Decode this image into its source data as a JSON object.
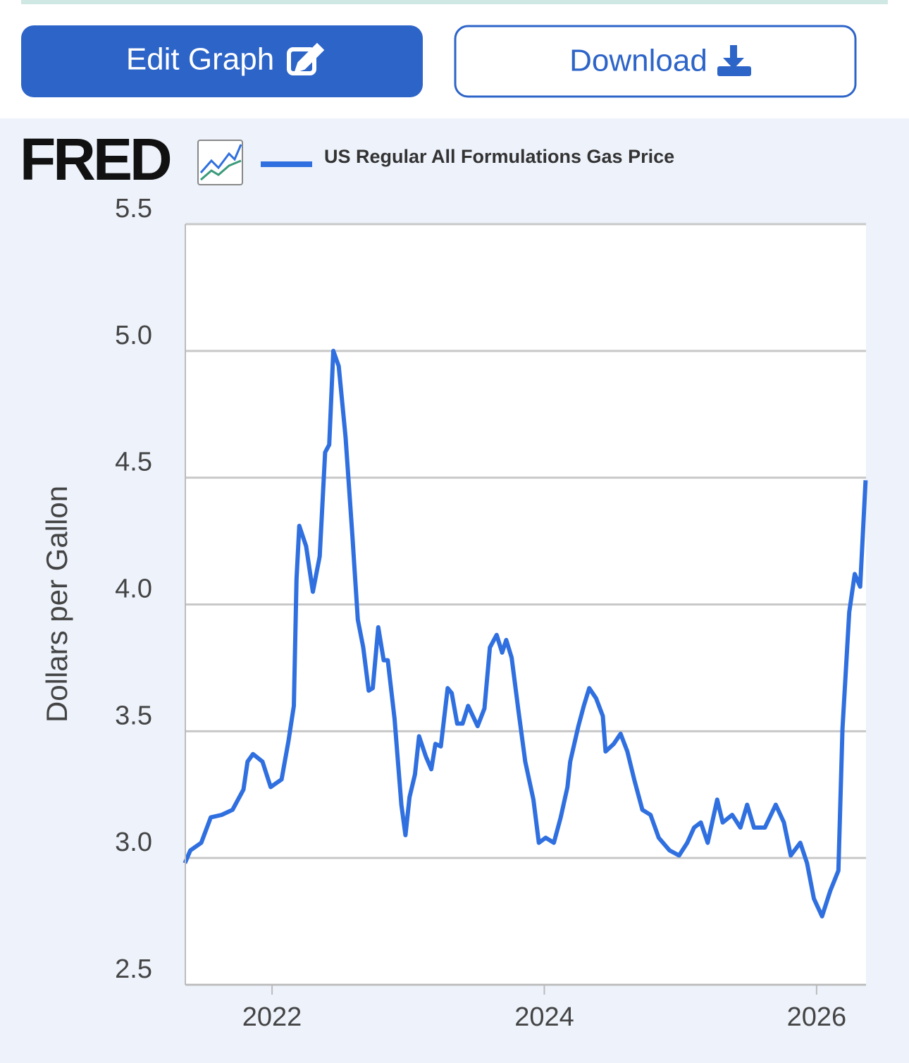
{
  "buttons": {
    "edit": "Edit Graph",
    "download": "Download"
  },
  "logo": "FRED",
  "chart_data": {
    "type": "line",
    "ylabel": "Dollars per Gallon",
    "x": [
      2021.36,
      2021.4,
      2021.48,
      2021.55,
      2021.63,
      2021.71,
      2021.79,
      2021.82,
      2021.86,
      2021.93,
      2021.99,
      2022.07,
      2022.12,
      2022.16,
      2022.18,
      2022.2,
      2022.25,
      2022.3,
      2022.35,
      2022.39,
      2022.42,
      2022.45,
      2022.49,
      2022.54,
      2022.59,
      2022.63,
      2022.67,
      2022.71,
      2022.74,
      2022.78,
      2022.82,
      2022.85,
      2022.9,
      2022.95,
      2022.98,
      2023.01,
      2023.05,
      2023.08,
      2023.13,
      2023.17,
      2023.2,
      2023.24,
      2023.29,
      2023.32,
      2023.36,
      2023.4,
      2023.44,
      2023.51,
      2023.56,
      2023.6,
      2023.65,
      2023.69,
      2023.72,
      2023.76,
      2023.81,
      2023.86,
      2023.92,
      2023.96,
      2024.01,
      2024.07,
      2024.12,
      2024.17,
      2024.19,
      2024.25,
      2024.29,
      2024.33,
      2024.38,
      2024.43,
      2024.45,
      2024.51,
      2024.56,
      2024.61,
      2024.66,
      2024.72,
      2024.78,
      2024.84,
      2024.92,
      2024.99,
      2025.05,
      2025.1,
      2025.15,
      2025.2,
      2025.27,
      2025.31,
      2025.38,
      2025.44,
      2025.49,
      2025.54,
      2025.62,
      2025.7,
      2025.76,
      2025.81,
      2025.88,
      2025.93,
      2025.98,
      2026.04,
      2026.1,
      2026.16,
      2026.19,
      2026.24,
      2026.28,
      2026.32,
      2026.36
    ],
    "series": [
      {
        "name": "US Regular All Formulations Gas Price",
        "color": "#2f6fdf",
        "values": [
          2.98,
          3.03,
          3.06,
          3.16,
          3.17,
          3.19,
          3.27,
          3.38,
          3.41,
          3.38,
          3.28,
          3.31,
          3.46,
          3.6,
          4.1,
          4.31,
          4.23,
          4.05,
          4.19,
          4.6,
          4.63,
          5.0,
          4.94,
          4.66,
          4.27,
          3.94,
          3.83,
          3.66,
          3.67,
          3.91,
          3.78,
          3.78,
          3.55,
          3.21,
          3.09,
          3.24,
          3.33,
          3.48,
          3.4,
          3.35,
          3.45,
          3.44,
          3.67,
          3.65,
          3.53,
          3.53,
          3.6,
          3.52,
          3.59,
          3.83,
          3.88,
          3.81,
          3.86,
          3.79,
          3.58,
          3.38,
          3.23,
          3.06,
          3.08,
          3.06,
          3.16,
          3.28,
          3.38,
          3.52,
          3.6,
          3.67,
          3.63,
          3.56,
          3.42,
          3.45,
          3.49,
          3.42,
          3.31,
          3.19,
          3.17,
          3.08,
          3.03,
          3.01,
          3.06,
          3.12,
          3.14,
          3.06,
          3.23,
          3.14,
          3.17,
          3.12,
          3.21,
          3.12,
          3.12,
          3.21,
          3.14,
          3.01,
          3.06,
          2.98,
          2.84,
          2.77,
          2.87,
          2.95,
          3.51,
          3.97,
          4.12,
          4.07,
          4.49
        ]
      }
    ],
    "xlim": [
      2021.363,
      2026.363
    ],
    "xticks": [
      2022,
      2024,
      2026
    ],
    "ylim": [
      2.5,
      5.5
    ],
    "yticks": [
      2.5,
      {
        "value": 3,
        "label": "3.0"
      },
      3.5,
      {
        "value": 4,
        "label": "4.0"
      },
      4.5,
      {
        "value": 5,
        "label": "5.0"
      },
      5.5
    ],
    "grid": true
  }
}
